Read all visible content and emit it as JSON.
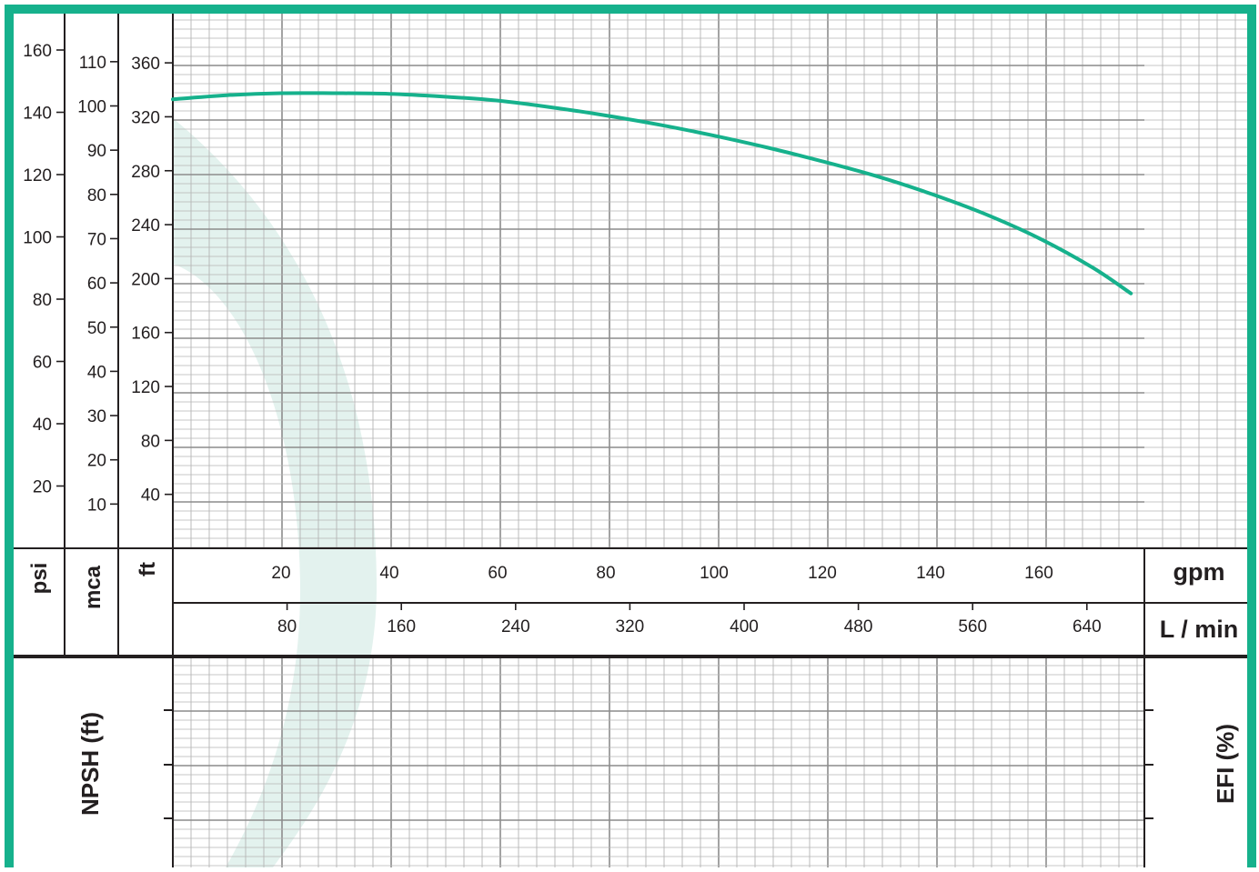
{
  "colors": {
    "accent": "#16b18c",
    "band": "#e3f2ee",
    "grid_major": "#8c8c8c",
    "grid_minor": "#b4b4b4",
    "text": "#231f20"
  },
  "labels": {
    "psi": "psi",
    "mca": "mca",
    "ft": "ft",
    "gpm": "gpm",
    "lmin": "L / min",
    "npsh": "NPSH (ft)",
    "efi": "EFI (%)"
  },
  "chart_data": {
    "type": "line",
    "x_unit": "gpm",
    "y_unit": "ft",
    "xlim": [
      0,
      180
    ],
    "ylim": [
      0,
      400
    ],
    "grid": true,
    "axes": {
      "psi_ticks": [
        20,
        40,
        60,
        80,
        100,
        120,
        140,
        160
      ],
      "mca_ticks": [
        10,
        20,
        30,
        40,
        50,
        60,
        70,
        80,
        90,
        100,
        110
      ],
      "ft_ticks": [
        40,
        80,
        120,
        160,
        200,
        240,
        280,
        320,
        360
      ],
      "gpm_ticks": [
        20,
        40,
        60,
        80,
        100,
        120,
        140,
        160
      ],
      "lmin_ticks": [
        80,
        160,
        240,
        320,
        400,
        480,
        560,
        640
      ]
    },
    "series": [
      {
        "x": [
          0,
          10,
          20,
          30,
          40,
          50,
          60,
          70,
          80,
          90,
          100,
          110,
          120,
          130,
          140,
          150,
          160,
          170,
          177
        ],
        "y": [
          333,
          336,
          337.5,
          337.5,
          337,
          335,
          332,
          327,
          321,
          314,
          306,
          297,
          287,
          276,
          263,
          248,
          230,
          208,
          189
        ]
      }
    ]
  }
}
